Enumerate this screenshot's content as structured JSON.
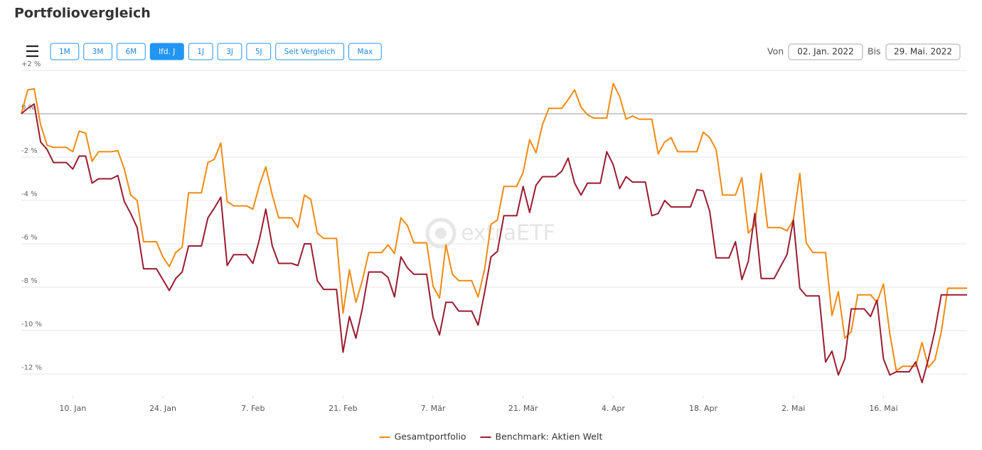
{
  "controls": {
    "buttons": [
      "1M",
      "3M",
      "6M",
      "lfd. J",
      "1J",
      "3J",
      "5J",
      "Seit Vergleich",
      "Max"
    ],
    "active": 3,
    "from_label": "Von",
    "from_date": "02. Jan. 2022",
    "to_label": "Bis",
    "to_date": "29. Mai. 2022"
  },
  "chart_data": {
    "type": "line",
    "title": "Portfoliovergleich",
    "watermark": "extraETF",
    "xlim": [
      0,
      147
    ],
    "xticks": [
      {
        "value": 8,
        "label": "10. Jan"
      },
      {
        "value": 22,
        "label": "24. Jan"
      },
      {
        "value": 36,
        "label": "7. Feb"
      },
      {
        "value": 50,
        "label": "21. Feb"
      },
      {
        "value": 64,
        "label": "7. Mär"
      },
      {
        "value": 78,
        "label": "21. Mär"
      },
      {
        "value": 92,
        "label": "4. Apr"
      },
      {
        "value": 106,
        "label": "18. Apr"
      },
      {
        "value": 120,
        "label": "2. Mai"
      },
      {
        "value": 134,
        "label": "16. Mai"
      }
    ],
    "ylim": [
      -13,
      2
    ],
    "yticks": [
      {
        "value": 2,
        "label": "+2 %"
      },
      {
        "value": 0,
        "label": "0 %"
      },
      {
        "value": -2,
        "label": "-2 %"
      },
      {
        "value": -4,
        "label": "-4 %"
      },
      {
        "value": -6,
        "label": "-6 %"
      },
      {
        "value": -8,
        "label": "-8 %"
      },
      {
        "value": -10,
        "label": "-10 %"
      },
      {
        "value": -12,
        "label": "-12 %"
      }
    ],
    "grid": true,
    "series": [
      {
        "name": "Gesamtportfolio",
        "color": "#f08a12",
        "x": [
          0,
          1,
          2,
          3,
          4,
          5,
          7,
          8,
          9,
          10,
          11,
          12,
          14,
          15,
          16,
          17,
          18,
          19,
          21,
          22,
          23,
          24,
          25,
          26,
          28,
          29,
          30,
          31,
          32,
          33,
          35,
          36,
          37,
          38,
          39,
          40,
          42,
          43,
          44,
          45,
          46,
          47,
          49,
          50,
          51,
          52,
          53,
          54,
          56,
          57,
          58,
          59,
          60,
          61,
          63,
          64,
          65,
          66,
          67,
          68,
          70,
          71,
          72,
          73,
          74,
          75,
          77,
          78,
          79,
          80,
          81,
          82,
          84,
          85,
          86,
          87,
          88,
          89,
          91,
          92,
          93,
          94,
          95,
          96,
          98,
          99,
          100,
          101,
          102,
          104,
          105,
          106,
          107,
          108,
          109,
          111,
          112,
          113,
          114,
          115,
          116,
          118,
          119,
          120,
          121,
          122,
          123,
          125,
          126,
          127,
          128,
          129,
          130,
          132,
          133,
          134,
          135,
          136,
          137,
          139,
          140,
          141,
          142,
          143,
          144,
          146,
          147
        ],
        "values": [
          0,
          1.1,
          1.15,
          -0.5,
          -1.45,
          -1.55,
          -1.55,
          -1.75,
          -0.8,
          -0.9,
          -2.2,
          -1.75,
          -1.75,
          -1.7,
          -2.55,
          -3.75,
          -4.0,
          -5.9,
          -5.9,
          -6.6,
          -7.05,
          -6.4,
          -6.15,
          -3.65,
          -3.65,
          -2.25,
          -2.1,
          -1.35,
          -4.05,
          -4.25,
          -4.25,
          -4.4,
          -3.3,
          -2.45,
          -3.75,
          -4.8,
          -4.8,
          -5.25,
          -3.75,
          -3.95,
          -5.5,
          -5.75,
          -5.75,
          -9.2,
          -7.2,
          -8.7,
          -7.7,
          -6.4,
          -6.4,
          -6.05,
          -6.45,
          -4.8,
          -5.15,
          -5.95,
          -5.95,
          -7.95,
          -8.5,
          -6.05,
          -7.4,
          -7.7,
          -7.7,
          -8.45,
          -7.2,
          -5.1,
          -4.9,
          -3.35,
          -3.35,
          -2.7,
          -1.2,
          -1.8,
          -0.5,
          0.25,
          0.25,
          0.65,
          1.1,
          0.3,
          -0.05,
          -0.2,
          -0.2,
          1.4,
          0.8,
          -0.25,
          -0.1,
          -0.25,
          -0.25,
          -1.85,
          -1.3,
          -1.1,
          -1.75,
          -1.75,
          -1.75,
          -0.85,
          -1.1,
          -1.65,
          -3.75,
          -3.75,
          -2.95,
          -5.5,
          -5.15,
          -2.75,
          -5.25,
          -5.25,
          -5.4,
          -4.9,
          -2.75,
          -5.95,
          -6.4,
          -6.4,
          -9.3,
          -8.2,
          -10.35,
          -10.05,
          -8.35,
          -8.35,
          -8.7,
          -7.85,
          -10.15,
          -11.85,
          -11.65,
          -11.65,
          -10.55,
          -11.7,
          -11.35,
          -10.05,
          -8.05,
          -8.05,
          -8.05
        ]
      },
      {
        "name": "Benchmark: Aktien Welt",
        "color": "#9b1b30",
        "x": [
          0,
          1,
          2,
          3,
          4,
          5,
          7,
          8,
          9,
          10,
          11,
          12,
          14,
          15,
          16,
          17,
          18,
          19,
          21,
          22,
          23,
          24,
          25,
          26,
          28,
          29,
          30,
          31,
          32,
          33,
          35,
          36,
          37,
          38,
          39,
          40,
          42,
          43,
          44,
          45,
          46,
          47,
          49,
          50,
          51,
          52,
          53,
          54,
          56,
          57,
          58,
          59,
          60,
          61,
          63,
          64,
          65,
          66,
          67,
          68,
          70,
          71,
          72,
          73,
          74,
          75,
          77,
          78,
          79,
          80,
          81,
          83,
          84,
          85,
          86,
          87,
          88,
          90,
          91,
          92,
          93,
          94,
          95,
          97,
          98,
          99,
          100,
          101,
          104,
          105,
          106,
          107,
          108,
          110,
          111,
          112,
          113,
          114,
          115,
          117,
          118,
          119,
          120,
          121,
          122,
          124,
          125,
          126,
          127,
          128,
          129,
          131,
          132,
          133,
          134,
          135,
          136,
          138,
          139,
          140,
          141,
          142,
          143,
          146,
          147
        ],
        "values": [
          0,
          0.25,
          0.45,
          -1.3,
          -1.65,
          -2.25,
          -2.25,
          -2.55,
          -1.95,
          -1.95,
          -3.2,
          -3.0,
          -3.0,
          -2.85,
          -4.05,
          -4.6,
          -5.25,
          -7.15,
          -7.15,
          -7.65,
          -8.15,
          -7.6,
          -7.3,
          -6.1,
          -6.1,
          -4.8,
          -4.35,
          -3.85,
          -7.0,
          -6.5,
          -6.5,
          -6.9,
          -5.8,
          -4.4,
          -6.1,
          -6.9,
          -6.9,
          -7.0,
          -6.0,
          -6.0,
          -7.7,
          -8.1,
          -8.1,
          -11.0,
          -9.35,
          -10.35,
          -9.0,
          -7.3,
          -7.3,
          -7.55,
          -8.45,
          -6.6,
          -7.1,
          -7.4,
          -7.4,
          -9.4,
          -10.2,
          -8.7,
          -8.7,
          -9.1,
          -9.1,
          -9.75,
          -8.25,
          -6.6,
          -6.35,
          -4.7,
          -4.7,
          -3.35,
          -4.55,
          -3.3,
          -2.9,
          -2.9,
          -2.65,
          -2.05,
          -3.2,
          -3.75,
          -3.2,
          -3.2,
          -1.75,
          -2.35,
          -3.45,
          -2.9,
          -3.15,
          -3.15,
          -4.7,
          -4.6,
          -4.0,
          -4.3,
          -4.3,
          -3.5,
          -3.55,
          -4.5,
          -6.65,
          -6.65,
          -5.9,
          -7.65,
          -6.8,
          -4.6,
          -7.6,
          -7.6,
          -7.05,
          -6.5,
          -4.9,
          -8.05,
          -8.4,
          -8.4,
          -11.45,
          -10.95,
          -12.05,
          -11.3,
          -9.0,
          -9.0,
          -9.35,
          -8.6,
          -11.3,
          -12.05,
          -11.9,
          -11.9,
          -11.45,
          -12.4,
          -11.3,
          -10.0,
          -8.35,
          -8.35,
          -8.35
        ]
      }
    ]
  }
}
